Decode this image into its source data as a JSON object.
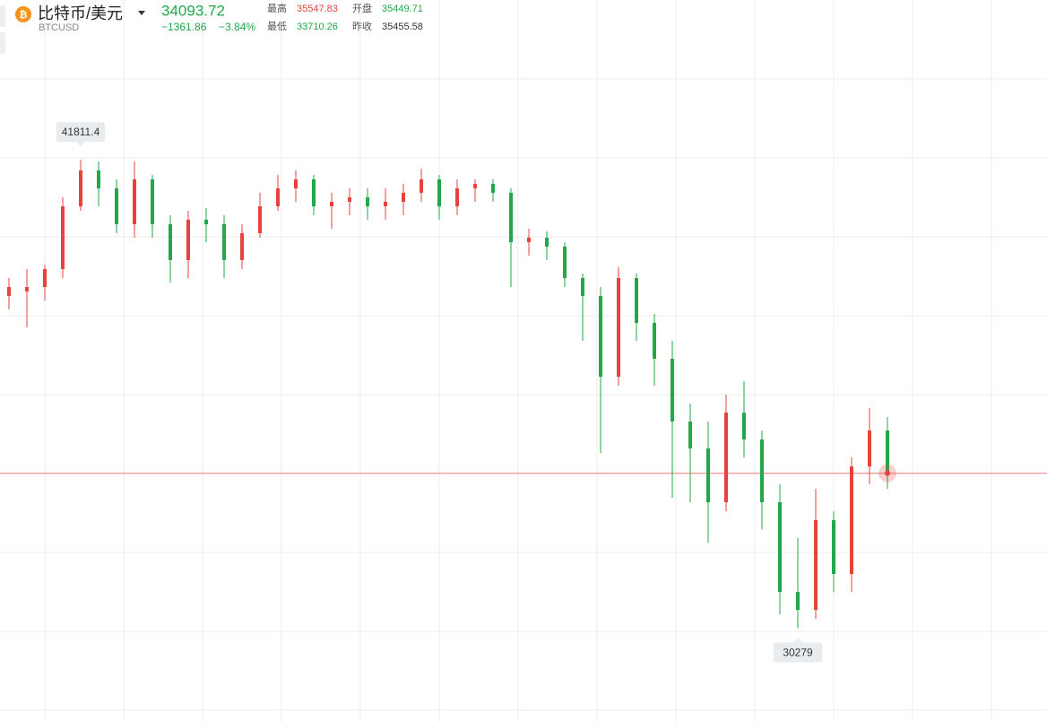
{
  "chart_data": {
    "type": "candlestick",
    "title": "比特币/美元",
    "subtitle": "BTCUSD",
    "price": 34093.72,
    "price_color": "#21a84a",
    "change": {
      "value": -1361.86,
      "label": "−1361.86"
    },
    "change_percent": {
      "value": -3.84,
      "label": "−3.84%"
    },
    "stats": [
      {
        "name": "最高",
        "value": 35547.83,
        "color": "#e8423f"
      },
      {
        "name": "开盘",
        "value": 35449.71,
        "color": "#21a84a"
      },
      {
        "name": "最低",
        "value": 33710.26,
        "color": "#21a84a"
      },
      {
        "name": "昨收",
        "value": 35455.58,
        "color": "#333333"
      }
    ],
    "open": [
      38457,
      38567,
      38677,
      39119,
      40665,
      41548,
      41106,
      40223,
      41327,
      40223,
      39340,
      40333,
      40223,
      39340,
      40002,
      40665,
      41106,
      41327,
      40665,
      40775,
      40885,
      40665,
      40775,
      40996,
      41327,
      40665,
      41106,
      41217,
      40996,
      39781,
      39892,
      39671,
      38898,
      38457,
      36469,
      38898,
      37794,
      36911,
      35365,
      34703,
      33378,
      35586,
      34924,
      33378,
      31170,
      30729,
      32937,
      31612,
      34261,
      35145
    ],
    "high": [
      38898,
      39119,
      39229,
      40885,
      41811.4,
      41769,
      41327,
      41769,
      41437,
      40444,
      40554,
      40620,
      40444,
      40223,
      40996,
      41437,
      41548,
      41437,
      40996,
      41106,
      41106,
      41106,
      41217,
      41592,
      41437,
      41327,
      41327,
      41327,
      41106,
      40113,
      40046,
      39781,
      39009,
      38677,
      39163,
      39009,
      38015,
      37353,
      35807,
      35365,
      36028,
      36359,
      35145,
      33820,
      32495,
      33709,
      33157,
      34482,
      35697,
      35476
    ],
    "low": [
      38125,
      37684,
      38346,
      38898,
      40554,
      40665,
      40002,
      39892,
      39892,
      38788,
      38898,
      39781,
      38898,
      39119,
      39892,
      40554,
      40775,
      40444,
      40113,
      40444,
      40333,
      40333,
      40444,
      40775,
      40333,
      40444,
      40775,
      40775,
      38677,
      39450,
      39340,
      38677,
      37353,
      34593,
      36249,
      37353,
      36249,
      33489,
      33378,
      32385,
      33157,
      34482,
      32716,
      30618,
      30279,
      30508,
      31170,
      31170,
      33820,
      33709
    ],
    "close": [
      38677,
      38677,
      39119,
      40665,
      41548,
      41106,
      40223,
      41327,
      40223,
      39340,
      40333,
      40223,
      39340,
      40002,
      40665,
      41106,
      41327,
      40665,
      40775,
      40885,
      40665,
      40775,
      40996,
      41327,
      40665,
      41106,
      41217,
      40996,
      39781,
      39892,
      39671,
      38898,
      38457,
      36469,
      38898,
      37794,
      36911,
      35365,
      34703,
      33378,
      35586,
      34924,
      33378,
      31170,
      30729,
      32937,
      31612,
      34261,
      35145,
      34094
    ],
    "ylim": [
      28300,
      43800
    ],
    "up_color": "#e8423f",
    "down_color": "#21a84a",
    "max_marker": 41811.4,
    "min_marker": 30279
  }
}
